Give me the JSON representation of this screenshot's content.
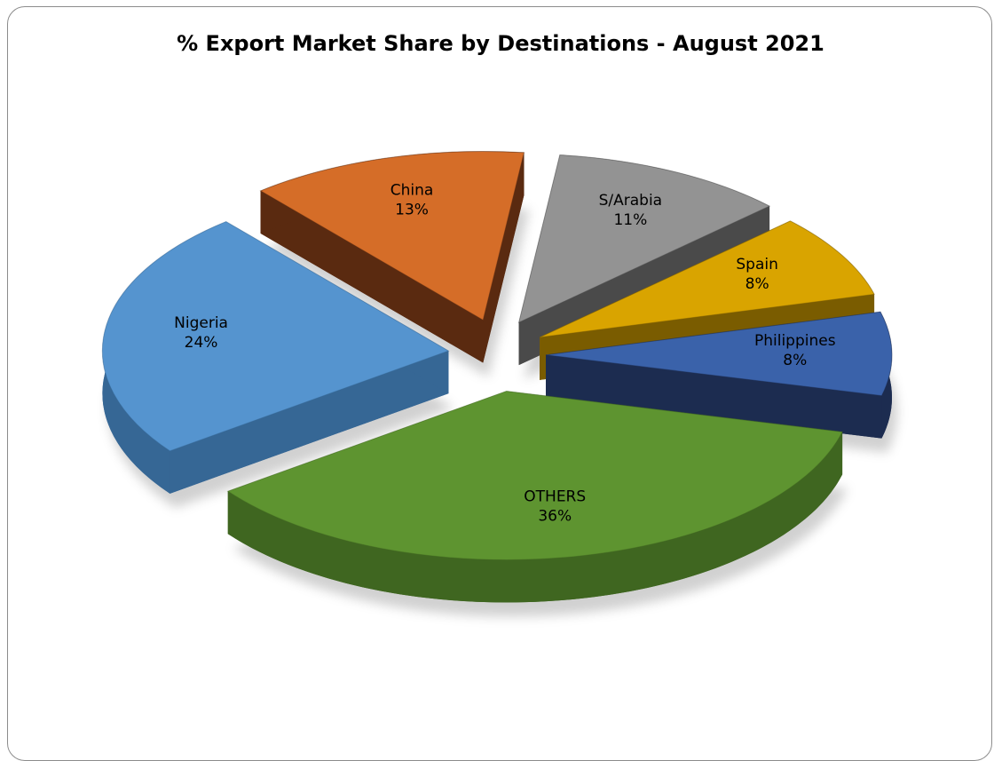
{
  "chart_data": {
    "type": "pie",
    "title": "% Export Market Share by Destinations - August 2021",
    "style": "3d-exploded",
    "slices": [
      {
        "label": "OTHERS",
        "value": 36,
        "percent_label": "36%",
        "color": "#5e9430",
        "side_color": "#3f6620"
      },
      {
        "label": "Nigeria",
        "value": 24,
        "percent_label": "24%",
        "color": "#5594cf",
        "side_color": "#366795"
      },
      {
        "label": "China",
        "value": 13,
        "percent_label": "13%",
        "color": "#d56d28",
        "side_color": "#5a2a10"
      },
      {
        "label": "S/Arabia",
        "value": 11,
        "percent_label": "11%",
        "color": "#939393",
        "side_color": "#4a4a4a"
      },
      {
        "label": "Spain",
        "value": 8,
        "percent_label": "8%",
        "color": "#d9a400",
        "side_color": "#7a5c00"
      },
      {
        "label": "Philippines",
        "value": 8,
        "percent_label": "8%",
        "color": "#3a62aa",
        "side_color": "#1c2c50"
      }
    ]
  }
}
